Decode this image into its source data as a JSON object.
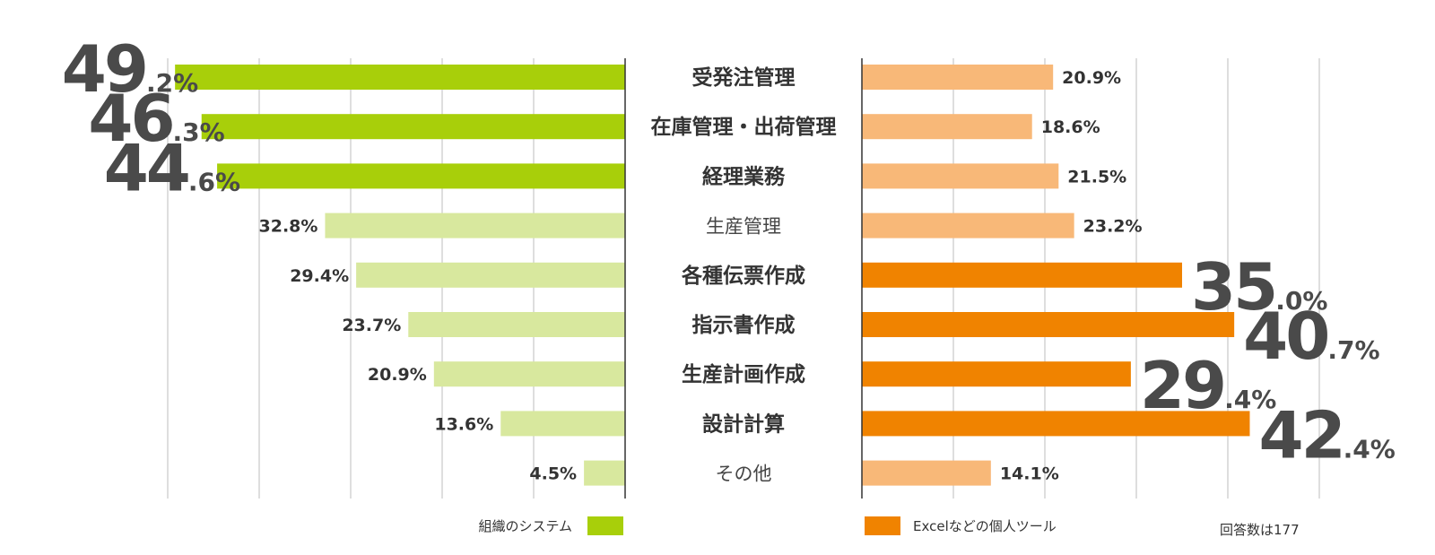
{
  "chart_data": {
    "type": "bar",
    "categories": [
      "受発注管理",
      "在庫管理・出荷管理",
      "経理業務",
      "生産管理",
      "各種伝票作成",
      "指示書作成",
      "生産計画作成",
      "設計計算",
      "その他"
    ],
    "series": [
      {
        "name": "組織のシステム",
        "values": [
          49.2,
          46.3,
          44.6,
          32.8,
          29.4,
          23.7,
          20.9,
          13.6,
          4.5
        ],
        "labels": [
          "49.2%",
          "46.3%",
          "44.6%",
          "32.8%",
          "29.4%",
          "23.7%",
          "20.9%",
          "13.6%",
          "4.5%"
        ],
        "highlighted": [
          true,
          true,
          true,
          false,
          false,
          false,
          false,
          false,
          false
        ],
        "color": "#a8cf0a",
        "light_color": "#d8e89e"
      },
      {
        "name": "Excelなどの個人ツール",
        "values": [
          20.9,
          18.6,
          21.5,
          23.2,
          35.0,
          40.7,
          29.4,
          42.4,
          14.1
        ],
        "labels": [
          "20.9%",
          "18.6%",
          "21.5%",
          "23.2%",
          "35.0%",
          "40.7%",
          "29.4%",
          "42.4%",
          "14.1%"
        ],
        "highlighted": [
          false,
          false,
          false,
          false,
          true,
          true,
          true,
          true,
          false
        ],
        "color": "#f08300",
        "light_color": "#f8b878"
      }
    ],
    "category_emphasis": [
      true,
      true,
      true,
      false,
      true,
      true,
      true,
      true,
      false
    ],
    "xlim": [
      0,
      50
    ],
    "grid": true,
    "note": "回答数は177"
  }
}
